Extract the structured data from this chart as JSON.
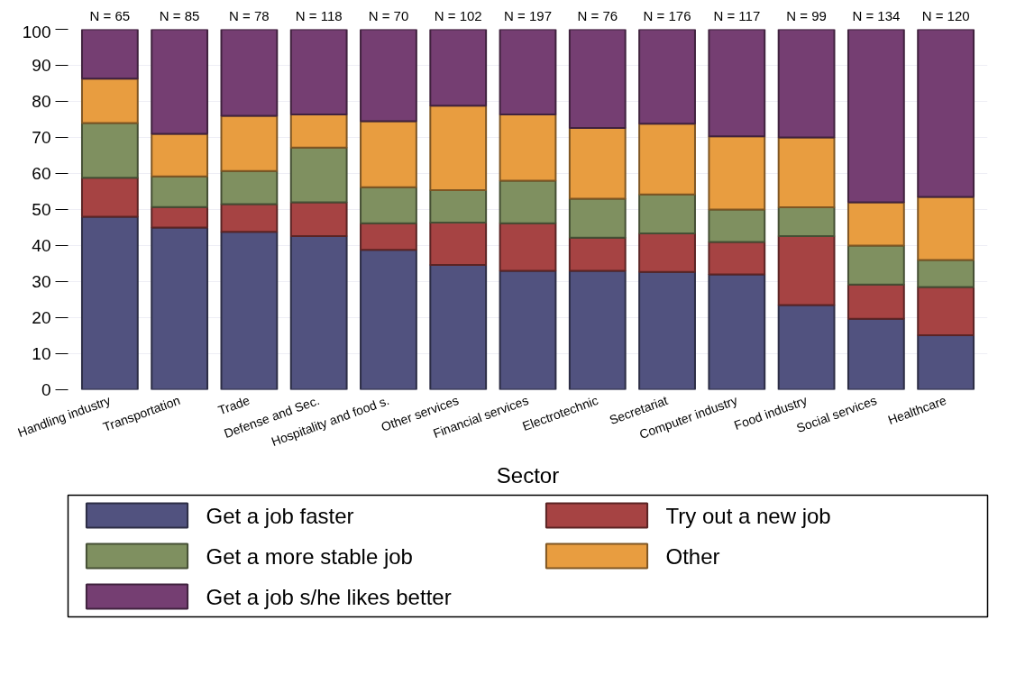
{
  "chart_data": {
    "type": "bar",
    "stacked": true,
    "xlabel": "Sector",
    "categories": [
      "Handling industry",
      "Transportation",
      "Trade",
      "Defense and Sec.",
      "Hospitality and food s.",
      "Other services",
      "Financial services",
      "Electrotechnic",
      "Secretariat",
      "Computer industry",
      "Food industry",
      "Social services",
      "Healthcare"
    ],
    "series": [
      {
        "name": "Get a job faster",
        "color": "#51527f",
        "values": [
          48,
          45,
          43.8,
          42.6,
          38.8,
          34.6,
          33,
          33,
          32.7,
          32,
          23.5,
          19.7,
          15.1
        ]
      },
      {
        "name": "Try out a new job",
        "color": "#a64343",
        "values": [
          10.8,
          5.7,
          7.7,
          9.4,
          7.4,
          11.8,
          13.2,
          9.2,
          10.7,
          9,
          19.1,
          9.5,
          13.4
        ]
      },
      {
        "name": "Get a more stable job",
        "color": "#7f9060",
        "values": [
          15.2,
          8.5,
          9.2,
          15.2,
          10,
          9,
          11.8,
          10.8,
          10.8,
          9,
          8,
          10.8,
          7.5
        ]
      },
      {
        "name": "Other",
        "color": "#e89d40",
        "values": [
          12.3,
          11.8,
          15.3,
          9.2,
          18.3,
          23.4,
          18.4,
          19.6,
          19.6,
          20.3,
          19.4,
          12,
          17.5
        ]
      },
      {
        "name": "Get a job s/he likes better",
        "color": "#753e72",
        "values": [
          13.7,
          29,
          24,
          23.6,
          25.5,
          21.2,
          23.6,
          27.4,
          26.2,
          29.7,
          30,
          48,
          46.5
        ]
      }
    ],
    "annotations": [
      {
        "text": "N = 65",
        "x": "Handling industry",
        "y": 100
      },
      {
        "text": "N = 85",
        "x": "Transportation",
        "y": 100
      },
      {
        "text": "N = 78",
        "x": "Trade",
        "y": 100
      },
      {
        "text": "N = 118",
        "x": "Defense and Sec.",
        "y": 100
      },
      {
        "text": "N = 70",
        "x": "Hospitality and food s.",
        "y": 100
      },
      {
        "text": "N = 102",
        "x": "Other services",
        "y": 100
      },
      {
        "text": "N = 197",
        "x": "Financial services",
        "y": 100
      },
      {
        "text": "N = 76",
        "x": "Electrotechnic",
        "y": 100
      },
      {
        "text": "N = 176",
        "x": "Secretariat",
        "y": 100
      },
      {
        "text": "N = 117",
        "x": "Computer industry",
        "y": 100
      },
      {
        "text": "N = 99",
        "x": "Food industry",
        "y": 100
      },
      {
        "text": "N = 134",
        "x": "Social services",
        "y": 100
      },
      {
        "text": "N = 120",
        "x": "Healthcare",
        "y": 100
      }
    ],
    "ylim": [
      0,
      100
    ],
    "yticks": [
      0,
      10,
      20,
      30,
      40,
      50,
      60,
      70,
      80,
      90,
      100
    ],
    "grid": "y",
    "legend": "bottom"
  }
}
